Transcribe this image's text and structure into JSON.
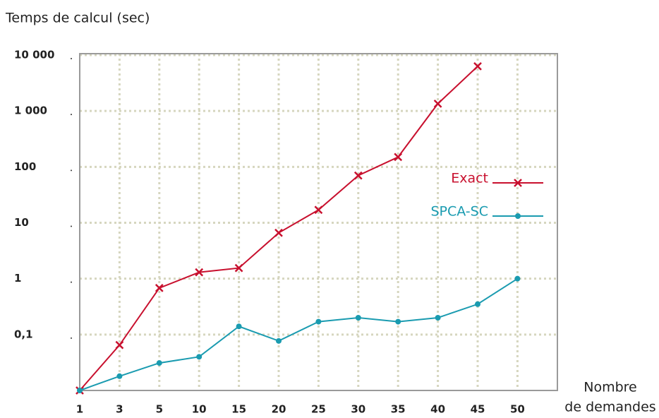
{
  "chart_data": {
    "type": "line",
    "ylabel": "Temps de calcul (sec)",
    "xlabel": [
      "Nombre",
      "de demandes"
    ],
    "categories": [
      "1",
      "3",
      "5",
      "10",
      "15",
      "20",
      "25",
      "30",
      "35",
      "40",
      "45",
      "50"
    ],
    "series": [
      {
        "name": "Exact",
        "color": "#c8102e",
        "marker": "x",
        "values": [
          0.01,
          0.065,
          0.68,
          1.3,
          1.55,
          6.6,
          17,
          70,
          150,
          1350,
          6300,
          null
        ]
      },
      {
        "name": "SPCA-SC",
        "color": "#1a9bb0",
        "marker": "circle",
        "values": [
          0.01,
          0.018,
          0.031,
          0.04,
          0.14,
          0.077,
          0.17,
          0.2,
          0.17,
          0.2,
          0.35,
          1
        ]
      }
    ],
    "ylim": [
      0.01,
      10000
    ],
    "log_y": true,
    "yticks": [
      {
        "value": 10000,
        "label": "10 000"
      },
      {
        "value": 1000,
        "label": "1 000"
      },
      100,
      10,
      1,
      {
        "value": 0.1,
        "label": "0,1"
      }
    ],
    "grid": true,
    "legend": "right"
  }
}
